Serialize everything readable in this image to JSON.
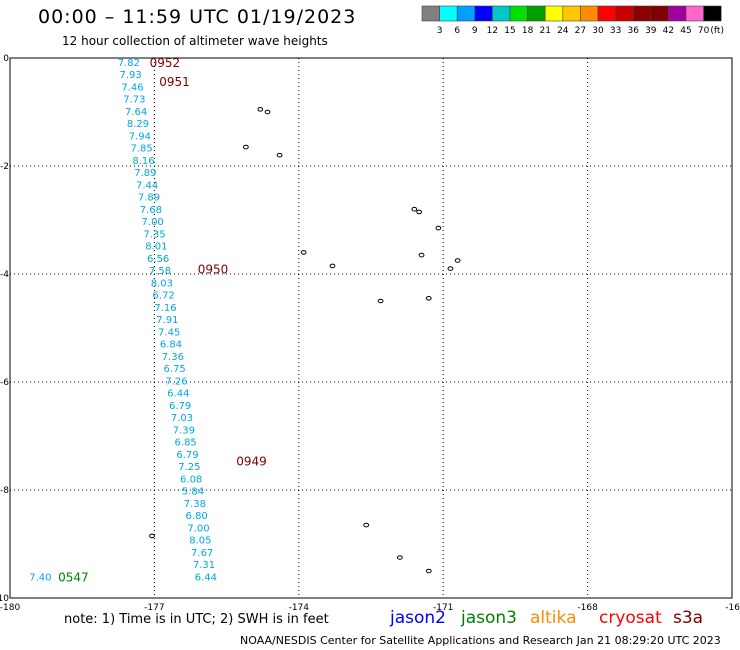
{
  "header": {
    "title": "00:00 – 11:59 UTC 01/19/2023",
    "subtitle": "12 hour collection of altimeter wave heights"
  },
  "legend": {
    "colors": [
      "#808080",
      "#00ffff",
      "#00a0ff",
      "#0000ff",
      "#00c8c8",
      "#00e000",
      "#00a000",
      "#ffff00",
      "#ffc800",
      "#ff8c00",
      "#ff0000",
      "#c80000",
      "#8b0000",
      "#800000",
      "#a000a0",
      "#ff66cc",
      "#000000"
    ],
    "labels": [
      "3",
      "6",
      "9",
      "12",
      "15",
      "18",
      "21",
      "24",
      "27",
      "30",
      "33",
      "36",
      "39",
      "42",
      "45",
      "70",
      "(ft)"
    ]
  },
  "axes": {
    "x_ticks": [
      "-180",
      "-177",
      "-174",
      "-171",
      "-168",
      "-16"
    ],
    "y_ticks": [
      "0",
      "-2",
      "-4",
      "-6",
      "-8",
      "-10"
    ]
  },
  "map_data": {
    "lon_range": [
      -180,
      -165
    ],
    "lat_range": [
      -10,
      0
    ],
    "time_labels": [
      {
        "text": "0952",
        "lon": -177.1,
        "lat": -0.07,
        "color": "#800000"
      },
      {
        "text": "0951",
        "lon": -176.9,
        "lat": -0.43,
        "color": "#800000"
      },
      {
        "text": "0950",
        "lon": -176.1,
        "lat": -3.9,
        "color": "#800000"
      },
      {
        "text": "0949",
        "lon": -175.3,
        "lat": -7.45,
        "color": "#800000"
      },
      {
        "text": "0547",
        "lon": -179.0,
        "lat": -9.6,
        "color": "#008000"
      }
    ],
    "jason3_points": [
      {
        "text": "7.40",
        "lon": -179.6,
        "lat": -9.6,
        "color": "#00a0ff"
      }
    ],
    "track_wave_heights": [
      "7.82",
      "7.93",
      "7.46",
      "7.73",
      "7.64",
      "8.29",
      "7.94",
      "7.85",
      "8.16",
      "7.89",
      "7.44",
      "7.89",
      "7.68",
      "7.00",
      "7.35",
      "8.01",
      "6.56",
      "7.58",
      "8.03",
      "6.72",
      "7.16",
      "7.91",
      "7.45",
      "6.84",
      "7.36",
      "6.75",
      "7.26",
      "6.44",
      "6.79",
      "7.03",
      "7.39",
      "6.85",
      "6.79",
      "7.25",
      "6.08",
      "5.84",
      "7.38",
      "6.80",
      "7.00",
      "8.05",
      "7.67",
      "7.31",
      "6.44"
    ],
    "track_start": {
      "lon": -177.3,
      "lat": -0.07
    },
    "track_end": {
      "lon": -175.7,
      "lat": -9.6
    },
    "islands": [
      {
        "lon": -174.8,
        "lat": -0.95
      },
      {
        "lon": -174.65,
        "lat": -1.0
      },
      {
        "lon": -175.1,
        "lat": -1.65
      },
      {
        "lon": -174.4,
        "lat": -1.8
      },
      {
        "lon": -171.6,
        "lat": -2.8
      },
      {
        "lon": -171.5,
        "lat": -2.85
      },
      {
        "lon": -171.1,
        "lat": -3.15
      },
      {
        "lon": -171.45,
        "lat": -3.65
      },
      {
        "lon": -170.7,
        "lat": -3.75
      },
      {
        "lon": -170.85,
        "lat": -3.9
      },
      {
        "lon": -173.9,
        "lat": -3.6
      },
      {
        "lon": -173.3,
        "lat": -3.85
      },
      {
        "lon": -172.3,
        "lat": -4.5
      },
      {
        "lon": -171.3,
        "lat": -4.45
      },
      {
        "lon": -177.05,
        "lat": -8.85
      },
      {
        "lon": -172.6,
        "lat": -8.65
      },
      {
        "lon": -171.9,
        "lat": -9.25
      },
      {
        "lon": -171.3,
        "lat": -9.5
      }
    ]
  },
  "satellites": [
    {
      "name": "jason2",
      "color": "#0000ff"
    },
    {
      "name": "jason3",
      "color": "#008000"
    },
    {
      "name": "altika",
      "color": "#ff8c00"
    },
    {
      "name": "cryosat",
      "color": "#ff0000"
    },
    {
      "name": "s3a",
      "color": "#800000"
    }
  ],
  "footer": {
    "note": "note:  1) Time is in UTC;  2) SWH is in feet",
    "credit": "NOAA/NESDIS Center for Satellite Applications and Research    Jan 21 08:29:20 UTC 2023"
  }
}
